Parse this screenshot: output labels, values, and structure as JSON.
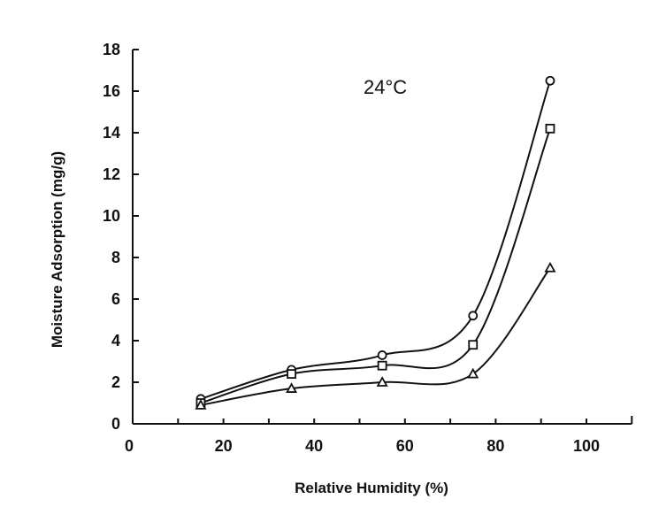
{
  "chart_data": {
    "type": "scatter",
    "annotation": "24°C",
    "xlabel": "Relative Humidity (%)",
    "ylabel": "Moisture Adsorption (mg/g)",
    "xlim": [
      0,
      110
    ],
    "ylim": [
      0,
      18
    ],
    "xticks": [
      0,
      20,
      40,
      60,
      80,
      100
    ],
    "xtick_labels": [
      "0",
      "20",
      "40",
      "60",
      "80",
      "100"
    ],
    "yticks": [
      0,
      2,
      4,
      6,
      8,
      10,
      12,
      14,
      16,
      18
    ],
    "ytick_labels": [
      "0",
      "2",
      "4",
      "6",
      "8",
      "10",
      "12",
      "14",
      "16",
      "18"
    ],
    "grid": false,
    "legend": "none",
    "series": [
      {
        "marker": "circle",
        "x": [
          15,
          35,
          55,
          75,
          92
        ],
        "y": [
          1.2,
          2.6,
          3.3,
          5.2,
          16.5
        ]
      },
      {
        "marker": "square",
        "x": [
          15,
          35,
          55,
          75,
          92
        ],
        "y": [
          1.0,
          2.4,
          2.8,
          3.8,
          14.2
        ]
      },
      {
        "marker": "triangle",
        "x": [
          15,
          35,
          55,
          75,
          92
        ],
        "y": [
          0.9,
          1.7,
          2.0,
          2.4,
          7.5
        ]
      }
    ]
  }
}
